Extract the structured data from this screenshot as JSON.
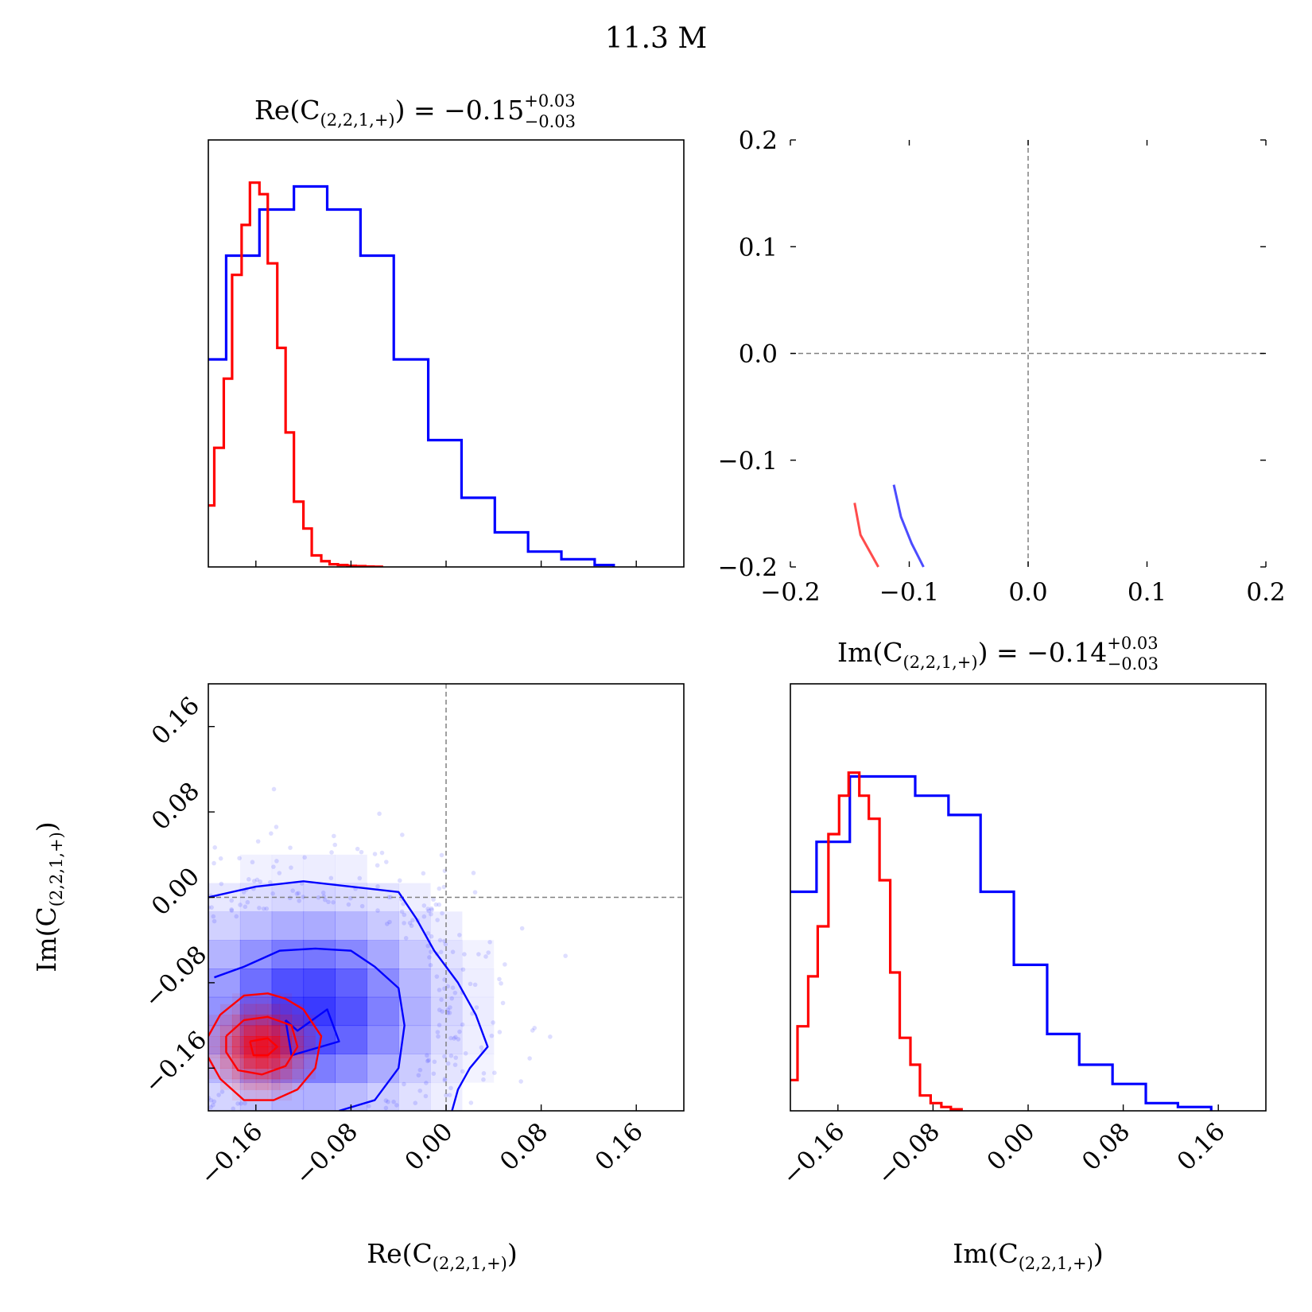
{
  "figure": {
    "suptitle": "11.3 M",
    "colors": {
      "posterior_a": "#0000ff",
      "posterior_b": "#ff0000",
      "reference_line": "#808080"
    }
  },
  "panels": {
    "re_hist": {
      "title_main": "Re(C",
      "title_sub": "(2,2,1,+)",
      "title_eq": ") = −0.15",
      "title_sup": "+0.03",
      "title_inf": "−0.03"
    },
    "im_hist": {
      "title_main": "Im(C",
      "title_sub": "(2,2,1,+)",
      "title_eq": ") = −0.14",
      "title_sup": "+0.03",
      "title_inf": "−0.03"
    },
    "joint": {
      "xlabel_main": "Re(C",
      "xlabel_sub": "(2,2,1,+)",
      "xlabel_end": ")",
      "ylabel_main": "Im(C",
      "ylabel_sub": "(2,2,1,+)",
      "ylabel_end": ")"
    },
    "im_xlabel": {
      "main": "Im(C",
      "sub": "(2,2,1,+)",
      "end": ")"
    }
  },
  "chart_data": [
    {
      "type": "histogram",
      "panel": "re_hist",
      "xlim": [
        -0.2,
        0.2
      ],
      "bin_edges": [
        -0.2,
        -0.1733,
        -0.1467,
        -0.12,
        -0.0933,
        -0.0667,
        -0.04,
        -0.0133,
        0.0133,
        0.04,
        0.0667,
        0.0933,
        0.12,
        0.1467,
        0.1733,
        0.2
      ],
      "series": [
        {
          "color": "#0000ff",
          "edges": [
            -0.2,
            -0.185,
            -0.157,
            -0.128,
            -0.1,
            -0.072,
            -0.044,
            -0.015,
            0.013,
            0.041,
            0.069,
            0.097,
            0.125,
            0.141
          ],
          "values": [
            0.54,
            0.81,
            0.93,
            0.99,
            0.93,
            0.81,
            0.54,
            0.33,
            0.18,
            0.09,
            0.04,
            0.02,
            0.005
          ]
        },
        {
          "color": "#ff0000",
          "edges": [
            -0.2,
            -0.195,
            -0.187,
            -0.18,
            -0.172,
            -0.165,
            -0.157,
            -0.15,
            -0.142,
            -0.135,
            -0.128,
            -0.12,
            -0.113,
            -0.105,
            -0.098,
            -0.091,
            -0.083,
            -0.076,
            -0.068,
            -0.061,
            -0.054
          ],
          "values": [
            0.16,
            0.31,
            0.49,
            0.76,
            0.89,
            1.0,
            0.97,
            0.79,
            0.57,
            0.35,
            0.17,
            0.1,
            0.03,
            0.015,
            0.007,
            0.005,
            0.003,
            0.002,
            0.001,
            0.0005
          ]
        }
      ]
    },
    {
      "type": "line",
      "panel": "top_right",
      "xlim": [
        -0.2,
        0.2
      ],
      "ylim": [
        -0.2,
        0.2
      ],
      "xticks": [
        "−0.2",
        "−0.1",
        "0.0",
        "0.1",
        "0.2"
      ],
      "yticks": [
        "−0.2",
        "−0.1",
        "0.0",
        "0.1",
        "0.2"
      ],
      "reference": {
        "x": 0.0,
        "y": 0.0
      },
      "series": [
        {
          "color": "#ff0000",
          "points": [
            [
              -0.146,
              -0.14
            ],
            [
              -0.141,
              -0.17
            ],
            [
              -0.132,
              -0.188
            ],
            [
              -0.126,
              -0.2
            ]
          ]
        },
        {
          "color": "#0000ff",
          "points": [
            [
              -0.113,
              -0.123
            ],
            [
              -0.107,
              -0.153
            ],
            [
              -0.098,
              -0.178
            ],
            [
              -0.088,
              -0.2
            ]
          ]
        }
      ]
    },
    {
      "type": "scatter",
      "panel": "joint",
      "xlim": [
        -0.2,
        0.2
      ],
      "ylim": [
        -0.2,
        0.2
      ],
      "xticks": [
        "−0.16",
        "−0.08",
        "0.00",
        "0.08",
        "0.16"
      ],
      "yticks": [
        "−0.16",
        "−0.08",
        "0.00",
        "0.08",
        "0.16"
      ],
      "reference": {
        "x": 0.0,
        "y": 0.0
      },
      "grid": false,
      "series": [
        {
          "color": "#0000ff",
          "center": [
            -0.115,
            -0.105
          ],
          "spread": [
            0.065,
            0.06
          ],
          "contours": [
            [
              [
                -0.2,
                -0.0
              ],
              [
                -0.16,
                0.01
              ],
              [
                -0.12,
                0.015
              ],
              [
                -0.08,
                0.01
              ],
              [
                -0.04,
                0.005
              ],
              [
                -0.025,
                -0.02
              ],
              [
                -0.01,
                -0.05
              ],
              [
                0.01,
                -0.08
              ],
              [
                0.025,
                -0.11
              ],
              [
                0.035,
                -0.14
              ],
              [
                0.02,
                -0.16
              ],
              [
                0.01,
                -0.18
              ],
              [
                0.005,
                -0.2
              ]
            ],
            [
              [
                -0.195,
                -0.075
              ],
              [
                -0.17,
                -0.065
              ],
              [
                -0.14,
                -0.05
              ],
              [
                -0.11,
                -0.048
              ],
              [
                -0.08,
                -0.05
              ],
              [
                -0.06,
                -0.065
              ],
              [
                -0.04,
                -0.085
              ],
              [
                -0.035,
                -0.12
              ],
              [
                -0.04,
                -0.16
              ],
              [
                -0.06,
                -0.19
              ],
              [
                -0.09,
                -0.2
              ]
            ],
            [
              [
                -0.135,
                -0.115
              ],
              [
                -0.125,
                -0.125
              ],
              [
                -0.1,
                -0.105
              ],
              [
                -0.09,
                -0.135
              ],
              [
                -0.13,
                -0.148
              ],
              [
                -0.135,
                -0.115
              ]
            ]
          ]
        },
        {
          "color": "#ff0000",
          "center": [
            -0.155,
            -0.14
          ],
          "spread": [
            0.022,
            0.022
          ],
          "contours": [
            [
              [
                -0.2,
                -0.13
              ],
              [
                -0.19,
                -0.11
              ],
              [
                -0.17,
                -0.092
              ],
              [
                -0.15,
                -0.09
              ],
              [
                -0.135,
                -0.095
              ],
              [
                -0.12,
                -0.105
              ],
              [
                -0.105,
                -0.13
              ],
              [
                -0.11,
                -0.16
              ],
              [
                -0.125,
                -0.18
              ],
              [
                -0.145,
                -0.19
              ],
              [
                -0.17,
                -0.19
              ],
              [
                -0.19,
                -0.17
              ],
              [
                -0.2,
                -0.15
              ]
            ],
            [
              [
                -0.185,
                -0.13
              ],
              [
                -0.17,
                -0.115
              ],
              [
                -0.15,
                -0.112
              ],
              [
                -0.13,
                -0.12
              ],
              [
                -0.125,
                -0.14
              ],
              [
                -0.135,
                -0.158
              ],
              [
                -0.155,
                -0.166
              ],
              [
                -0.175,
                -0.162
              ],
              [
                -0.185,
                -0.145
              ],
              [
                -0.185,
                -0.13
              ]
            ],
            [
              [
                -0.165,
                -0.135
              ],
              [
                -0.15,
                -0.132
              ],
              [
                -0.142,
                -0.14
              ],
              [
                -0.15,
                -0.148
              ],
              [
                -0.162,
                -0.148
              ],
              [
                -0.165,
                -0.135
              ]
            ]
          ]
        }
      ]
    },
    {
      "type": "histogram",
      "panel": "im_hist",
      "xlim": [
        -0.2,
        0.2
      ],
      "xticks": [
        "−0.16",
        "−0.08",
        "0.00",
        "0.08",
        "0.16"
      ],
      "series": [
        {
          "color": "#0000ff",
          "edges": [
            -0.2,
            -0.178,
            -0.15,
            -0.122,
            -0.095,
            -0.067,
            -0.04,
            -0.012,
            0.016,
            0.043,
            0.071,
            0.099,
            0.126,
            0.154
          ],
          "values": [
            0.57,
            0.7,
            0.87,
            0.87,
            0.82,
            0.77,
            0.57,
            0.38,
            0.2,
            0.12,
            0.07,
            0.02,
            0.01
          ]
        },
        {
          "color": "#ff0000",
          "edges": [
            -0.2,
            -0.194,
            -0.185,
            -0.177,
            -0.168,
            -0.159,
            -0.151,
            -0.142,
            -0.134,
            -0.125,
            -0.116,
            -0.108,
            -0.099,
            -0.091,
            -0.082,
            -0.073,
            -0.065,
            -0.056
          ],
          "values": [
            0.08,
            0.22,
            0.35,
            0.48,
            0.72,
            0.82,
            0.88,
            0.82,
            0.76,
            0.6,
            0.36,
            0.19,
            0.12,
            0.04,
            0.02,
            0.01,
            0.004
          ]
        }
      ]
    }
  ]
}
